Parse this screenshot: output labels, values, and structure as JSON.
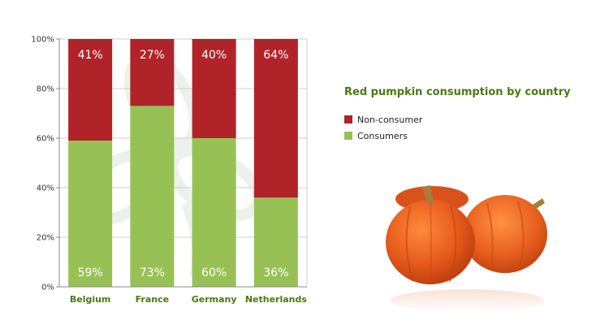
{
  "colors": {
    "non_consumer": "#b02329",
    "consumers": "#97c155",
    "title": "#4a7a12",
    "pumpkin": "#e45a1b"
  },
  "legend": {
    "title": "Red pumpkin consumption by country",
    "items": [
      {
        "label": "Non-consumer",
        "color": "#b02329"
      },
      {
        "label": "Consumers",
        "color": "#97c155"
      }
    ]
  },
  "image": {
    "icon": "red-pumpkins-photo"
  },
  "chart_data": {
    "type": "bar",
    "stacked": true,
    "title": "Red pumpkin consumption by country",
    "categories": [
      "Belgium",
      "France",
      "Germany",
      "Netherlands"
    ],
    "series": [
      {
        "name": "Consumers",
        "values": [
          59,
          73,
          60,
          36
        ],
        "labels": [
          "59%",
          "73%",
          "60%",
          "36%"
        ]
      },
      {
        "name": "Non-consumer",
        "values": [
          41,
          27,
          40,
          64
        ],
        "labels": [
          "41%",
          "27%",
          "40%",
          "64%"
        ]
      }
    ],
    "y_ticks": [
      "0%",
      "20%",
      "40%",
      "60%",
      "80%",
      "100%"
    ],
    "ylim": [
      0,
      100
    ],
    "grid": true,
    "legend_position": "right"
  }
}
